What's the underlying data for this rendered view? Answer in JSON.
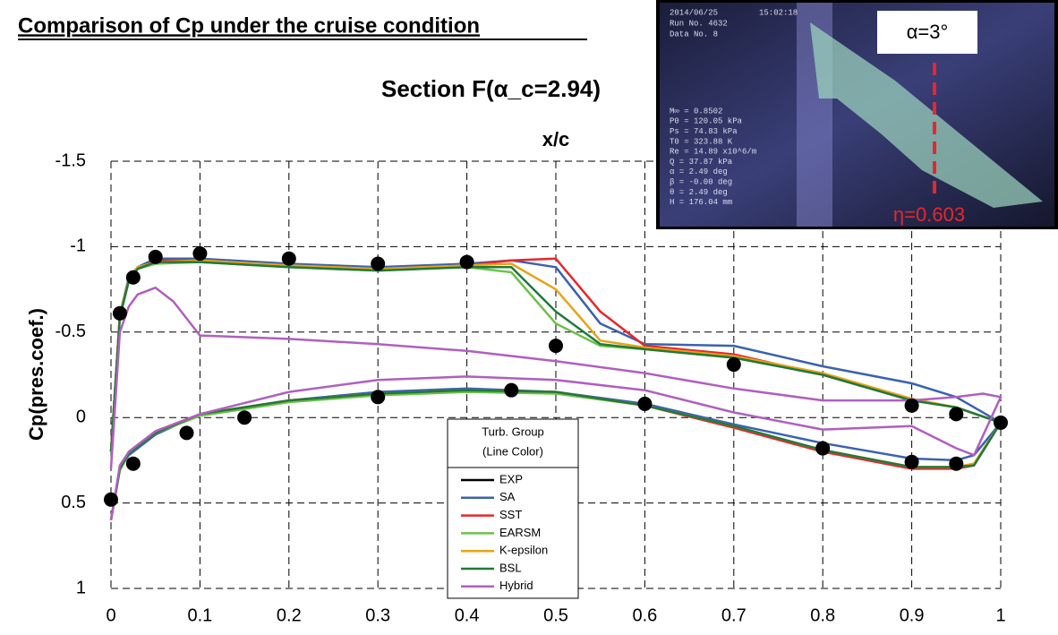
{
  "chart_data": {
    "type": "line",
    "title": "Comparison of Cp under the cruise condition",
    "subtitle": "Section F(α_c=2.94)",
    "x_label": "x/c",
    "y_label": "Cp(pres.coef.)",
    "xlim": [
      0,
      1
    ],
    "xticks": [
      0,
      0.1,
      0.2,
      0.3,
      0.4,
      0.5,
      0.6,
      0.7,
      0.8,
      0.9,
      1
    ],
    "ylim": [
      -1.5,
      1
    ],
    "yticks": [
      -1.5,
      -1,
      -0.5,
      0,
      0.5,
      1
    ],
    "y_inverted": true,
    "grid": true,
    "legend_title": [
      "Turb. Group",
      "(Line Color)"
    ],
    "series": [
      {
        "name": "EXP",
        "color": "#000000",
        "markers": true,
        "x": [
          0.01,
          0.025,
          0.05,
          0.1,
          0.2,
          0.3,
          0.4,
          0.5,
          0.7,
          0.9,
          0.95,
          1.0,
          0.95,
          0.9,
          0.8,
          0.6,
          0.45,
          0.3,
          0.15,
          0.085,
          0.025,
          0
        ],
        "values": [
          -0.61,
          -0.82,
          -0.94,
          -0.96,
          -0.93,
          -0.9,
          -0.91,
          -0.42,
          -0.31,
          -0.07,
          -0.02,
          0.03,
          0.27,
          0.26,
          0.18,
          -0.08,
          -0.16,
          -0.12,
          0.0,
          0.09,
          0.27,
          0.48
        ]
      },
      {
        "name": "SA",
        "color": "#3a62b0",
        "x": [
          0,
          0.01,
          0.02,
          0.03,
          0.05,
          0.1,
          0.2,
          0.3,
          0.4,
          0.45,
          0.5,
          0.55,
          0.6,
          0.7,
          0.8,
          0.9,
          0.95,
          1,
          1,
          0.97,
          0.95,
          0.9,
          0.8,
          0.7,
          0.6,
          0.5,
          0.4,
          0.3,
          0.2,
          0.1,
          0.05,
          0.02,
          0.01,
          0
        ],
        "values": [
          0.2,
          -0.6,
          -0.82,
          -0.88,
          -0.93,
          -0.93,
          -0.9,
          -0.88,
          -0.9,
          -0.92,
          -0.88,
          -0.55,
          -0.43,
          -0.42,
          -0.3,
          -0.2,
          -0.12,
          0.03,
          0.03,
          0.22,
          0.25,
          0.24,
          0.15,
          0.04,
          -0.08,
          -0.15,
          -0.17,
          -0.15,
          -0.1,
          -0.02,
          0.1,
          0.22,
          0.3,
          0.6
        ]
      },
      {
        "name": "SST",
        "color": "#e8262b",
        "x": [
          0,
          0.01,
          0.02,
          0.03,
          0.05,
          0.1,
          0.2,
          0.3,
          0.4,
          0.45,
          0.5,
          0.55,
          0.6,
          0.7,
          0.8,
          0.9,
          0.95,
          1,
          1,
          0.97,
          0.95,
          0.9,
          0.8,
          0.7,
          0.6,
          0.5,
          0.4,
          0.3,
          0.2,
          0.1,
          0.05,
          0.02,
          0.01,
          0
        ],
        "values": [
          0.2,
          -0.6,
          -0.8,
          -0.87,
          -0.92,
          -0.92,
          -0.89,
          -0.87,
          -0.89,
          -0.92,
          -0.93,
          -0.62,
          -0.42,
          -0.37,
          -0.25,
          -0.1,
          -0.06,
          0.03,
          0.03,
          0.28,
          0.3,
          0.3,
          0.2,
          0.06,
          -0.07,
          -0.15,
          -0.16,
          -0.14,
          -0.1,
          -0.02,
          0.08,
          0.2,
          0.3,
          0.6
        ]
      },
      {
        "name": "EARSM",
        "color": "#6cc24a",
        "x": [
          0,
          0.01,
          0.02,
          0.03,
          0.05,
          0.1,
          0.2,
          0.3,
          0.4,
          0.45,
          0.5,
          0.55,
          0.6,
          0.7,
          0.8,
          0.9,
          0.95,
          1,
          1,
          0.97,
          0.95,
          0.9,
          0.8,
          0.7,
          0.6,
          0.5,
          0.4,
          0.3,
          0.2,
          0.1,
          0.05,
          0.02,
          0.01,
          0
        ],
        "values": [
          0.2,
          -0.58,
          -0.8,
          -0.87,
          -0.9,
          -0.91,
          -0.88,
          -0.86,
          -0.88,
          -0.85,
          -0.55,
          -0.42,
          -0.4,
          -0.35,
          -0.25,
          -0.1,
          -0.06,
          0.03,
          0.03,
          0.27,
          0.29,
          0.29,
          0.19,
          0.05,
          -0.07,
          -0.14,
          -0.15,
          -0.13,
          -0.09,
          -0.01,
          0.09,
          0.21,
          0.31,
          0.6
        ]
      },
      {
        "name": "K-epsilon",
        "color": "#e8a317",
        "x": [
          0,
          0.01,
          0.02,
          0.03,
          0.05,
          0.1,
          0.2,
          0.3,
          0.4,
          0.45,
          0.5,
          0.55,
          0.6,
          0.7,
          0.8,
          0.9,
          0.95,
          1,
          1,
          0.97,
          0.95,
          0.9,
          0.8,
          0.7,
          0.6,
          0.5,
          0.4,
          0.3,
          0.2,
          0.1,
          0.05,
          0.02,
          0.01,
          0
        ],
        "values": [
          0.2,
          -0.6,
          -0.81,
          -0.88,
          -0.91,
          -0.92,
          -0.89,
          -0.87,
          -0.89,
          -0.9,
          -0.75,
          -0.45,
          -0.41,
          -0.36,
          -0.26,
          -0.11,
          -0.06,
          0.03,
          0.03,
          0.27,
          0.29,
          0.29,
          0.19,
          0.05,
          -0.07,
          -0.15,
          -0.16,
          -0.14,
          -0.1,
          -0.02,
          0.09,
          0.21,
          0.3,
          0.6
        ]
      },
      {
        "name": "BSL",
        "color": "#1f7a3a",
        "x": [
          0,
          0.01,
          0.02,
          0.03,
          0.05,
          0.1,
          0.2,
          0.3,
          0.4,
          0.45,
          0.5,
          0.55,
          0.6,
          0.7,
          0.8,
          0.9,
          0.95,
          1,
          1,
          0.97,
          0.95,
          0.9,
          0.8,
          0.7,
          0.6,
          0.5,
          0.4,
          0.3,
          0.2,
          0.1,
          0.05,
          0.02,
          0.01,
          0
        ],
        "values": [
          0.2,
          -0.59,
          -0.8,
          -0.87,
          -0.91,
          -0.91,
          -0.88,
          -0.86,
          -0.88,
          -0.88,
          -0.62,
          -0.43,
          -0.4,
          -0.35,
          -0.25,
          -0.1,
          -0.06,
          0.03,
          0.03,
          0.28,
          0.29,
          0.29,
          0.19,
          0.05,
          -0.07,
          -0.15,
          -0.16,
          -0.14,
          -0.1,
          -0.02,
          0.09,
          0.21,
          0.3,
          0.6
        ]
      },
      {
        "name": "Hybrid",
        "color": "#b05fc0",
        "x": [
          0,
          0.01,
          0.02,
          0.03,
          0.05,
          0.07,
          0.1,
          0.2,
          0.3,
          0.4,
          0.5,
          0.6,
          0.7,
          0.8,
          0.9,
          0.95,
          0.98,
          1,
          1,
          0.97,
          0.95,
          0.9,
          0.8,
          0.7,
          0.6,
          0.5,
          0.4,
          0.3,
          0.2,
          0.1,
          0.05,
          0.02,
          0.01,
          0
        ],
        "values": [
          0.3,
          -0.5,
          -0.65,
          -0.72,
          -0.76,
          -0.68,
          -0.48,
          -0.46,
          -0.43,
          -0.39,
          -0.33,
          -0.26,
          -0.17,
          -0.1,
          -0.1,
          -0.12,
          -0.14,
          -0.12,
          -0.12,
          0.22,
          0.18,
          0.05,
          0.07,
          -0.03,
          -0.16,
          -0.22,
          -0.24,
          -0.22,
          -0.15,
          -0.02,
          0.08,
          0.2,
          0.28,
          0.6
        ]
      }
    ],
    "inset": {
      "angle_label": "α=3°",
      "eta_label": "η=0.603",
      "overlay": [
        "2014/06/25",
        "15:02:18",
        "Run No. 4632",
        "Data No.  8",
        "M∞ = 0.8502",
        "P0 = 120.05 kPa",
        "Ps =  74.83 kPa",
        "T0 = 323.88 K",
        "Re =  14.89 x10^6/m",
        "Q  =  37.87 kPa",
        "α  =   2.49 deg",
        "β  =  -0.00 deg",
        "θ  =   2.49 deg",
        "H  = 176.04 mm"
      ]
    }
  }
}
